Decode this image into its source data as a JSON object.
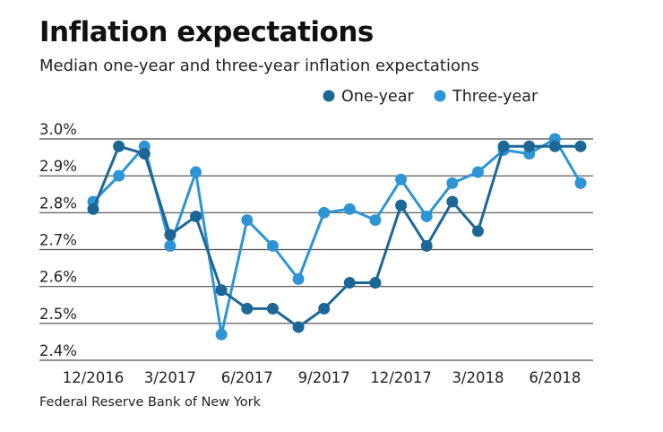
{
  "title": "Inflation expectations",
  "subtitle": "Median one-year and three-year inflation expectations",
  "source": "Federal Reserve Bank of New York",
  "colors": {
    "one_year": "#1d6797",
    "three_year": "#2d94d6",
    "grid": "#4a4a4a"
  },
  "chart_data": {
    "type": "line",
    "title": "Inflation expectations",
    "subtitle": "Median one-year and three-year inflation expectations",
    "y_tick_labels": [
      "3.0%",
      "2.9%",
      "2.8%",
      "2.7%",
      "2.6%",
      "2.5%",
      "2.4%"
    ],
    "y_ticks": [
      3.0,
      2.9,
      2.8,
      2.7,
      2.6,
      2.5,
      2.4
    ],
    "ylim": [
      2.4,
      3.0
    ],
    "x_tick_labels": [
      "12/2016",
      "3/2017",
      "6/2017",
      "9/2017",
      "12/2017",
      "3/2018",
      "6/2018"
    ],
    "x_tick_positions": [
      "2016-12",
      "2017-03",
      "2017-06",
      "2017-09",
      "2017-12",
      "2018-03",
      "2018-06"
    ],
    "x": [
      "2016-12",
      "2017-01",
      "2017-02",
      "2017-03",
      "2017-04",
      "2017-05",
      "2017-06",
      "2017-07",
      "2017-08",
      "2017-09",
      "2017-10",
      "2017-11",
      "2017-12",
      "2018-01",
      "2018-02",
      "2018-03",
      "2018-04",
      "2018-05",
      "2018-06",
      "2018-07"
    ],
    "legend_position": "top-right",
    "grid": "horizontal",
    "series": [
      {
        "name": "One-year",
        "values": [
          2.81,
          2.98,
          2.96,
          2.74,
          2.79,
          2.59,
          2.54,
          2.54,
          2.49,
          2.54,
          2.61,
          2.61,
          2.82,
          2.71,
          2.83,
          2.75,
          2.98,
          2.98,
          2.98,
          2.98
        ]
      },
      {
        "name": "Three-year",
        "values": [
          2.83,
          2.9,
          2.98,
          2.71,
          2.91,
          2.47,
          2.78,
          2.71,
          2.62,
          2.8,
          2.81,
          2.78,
          2.89,
          2.79,
          2.88,
          2.91,
          2.97,
          2.96,
          3.0,
          2.88
        ]
      }
    ]
  }
}
